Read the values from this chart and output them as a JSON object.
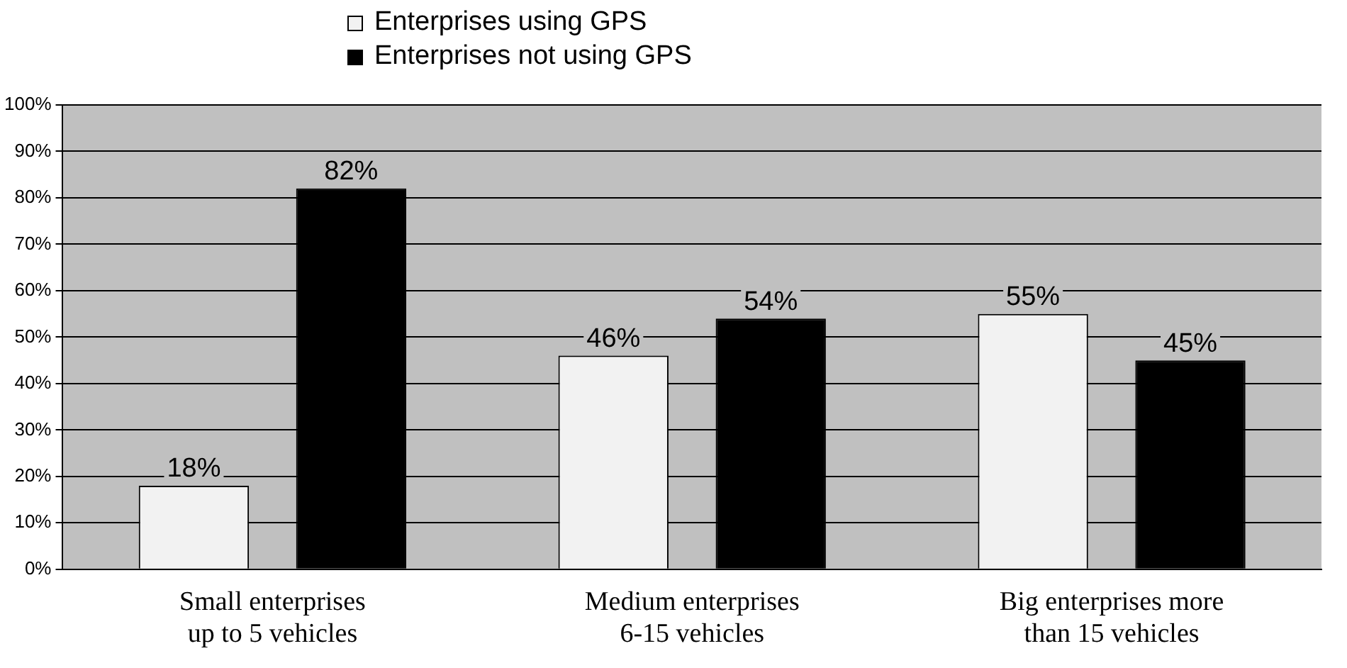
{
  "chart_data": {
    "type": "bar",
    "categories": [
      "Small enterprises\nup to 5 vehicles",
      "Medium enterprises\n6-15 vehicles",
      "Big enterprises more\nthan 15 vehicles"
    ],
    "series": [
      {
        "name": "Enterprises using GPS",
        "color": "#f2f2f2",
        "values": [
          18,
          46,
          55
        ]
      },
      {
        "name": "Enterprises not using GPS",
        "color": "#000000",
        "values": [
          82,
          54,
          45
        ]
      }
    ],
    "ylim": [
      0,
      100
    ],
    "yticks": [
      {
        "value": 0,
        "label": "0%"
      },
      {
        "value": 10,
        "label": "10%"
      },
      {
        "value": 20,
        "label": "20%"
      },
      {
        "value": 30,
        "label": "30%"
      },
      {
        "value": 40,
        "label": "40%"
      },
      {
        "value": 50,
        "label": "50%"
      },
      {
        "value": 60,
        "label": "60%"
      },
      {
        "value": 70,
        "label": "70%"
      },
      {
        "value": 80,
        "label": "80%"
      },
      {
        "value": 90,
        "label": "90%"
      },
      {
        "value": 100,
        "label": "100%"
      }
    ],
    "value_labels": [
      [
        "18%",
        "46%",
        "55%"
      ],
      [
        "82%",
        "54%",
        "45%"
      ]
    ],
    "grid": "y",
    "legend": "top"
  }
}
